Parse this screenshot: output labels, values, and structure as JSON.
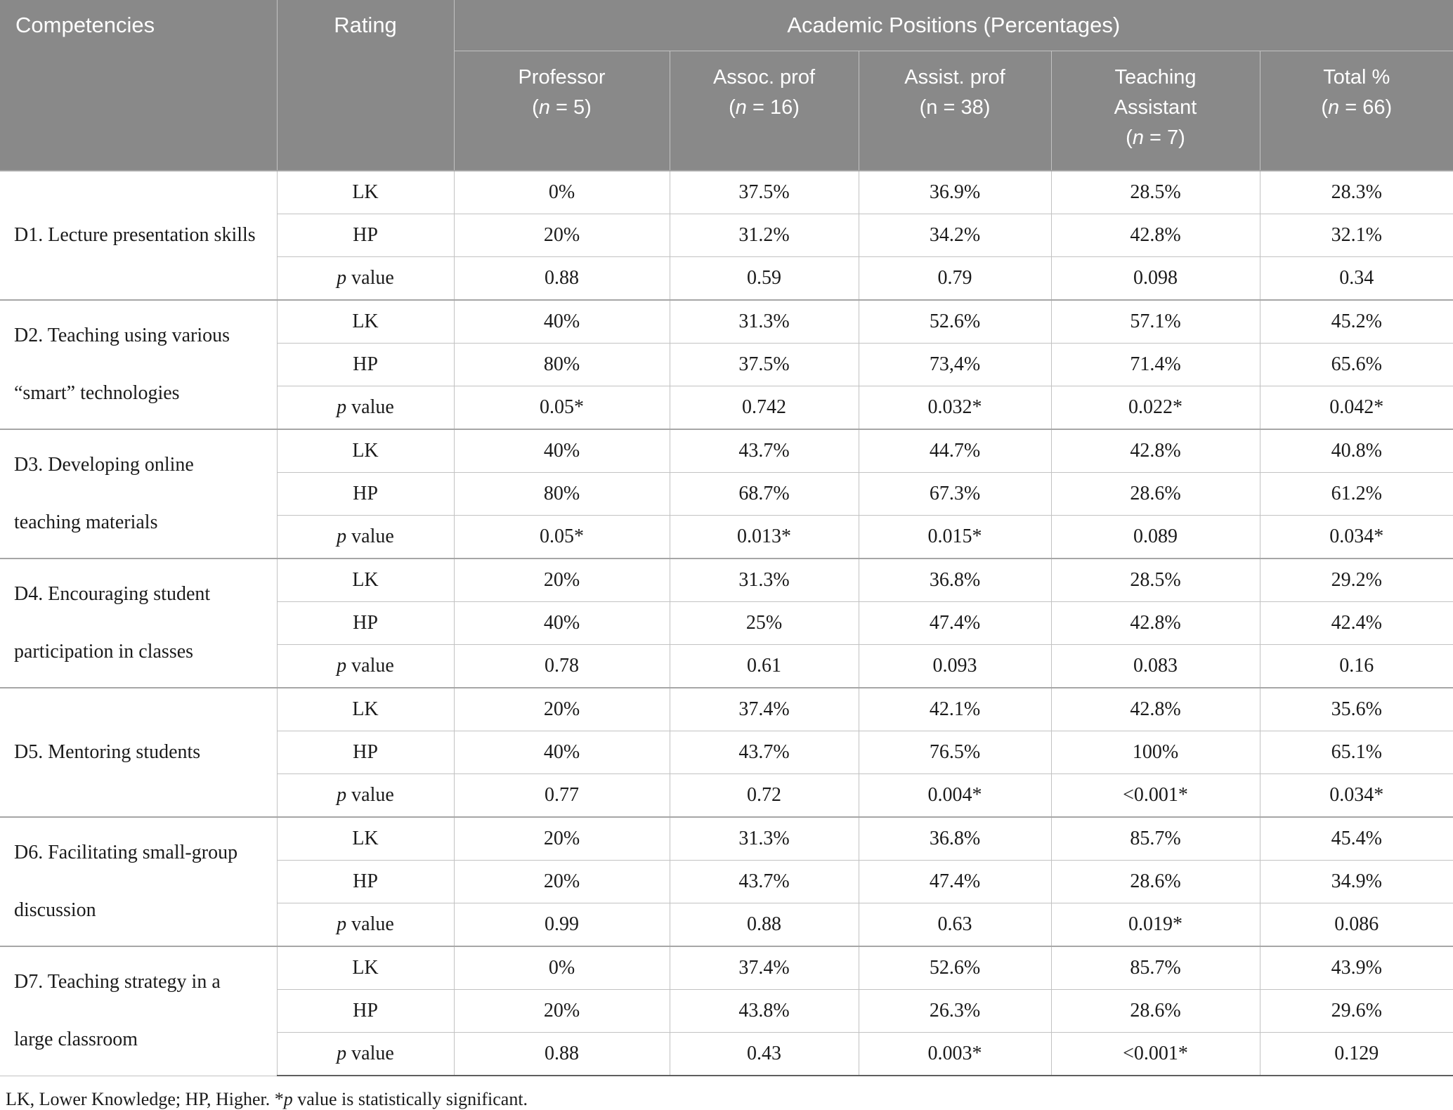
{
  "colors": {
    "header_bg": "#898989",
    "header_text": "#ffffff",
    "body_text": "#1b1b1b",
    "grid": "#c2c2c2",
    "group_line": "#a6a6a6",
    "bottom_line": "#5e5e5e"
  },
  "table": {
    "header": {
      "competencies": "Competencies",
      "rating": "Rating",
      "positions_title": "Academic Positions (Percentages)",
      "columns": [
        {
          "title_lines": [
            "Professor"
          ],
          "n": "5",
          "italic_n": true
        },
        {
          "title_lines": [
            "Assoc. prof"
          ],
          "n": "16",
          "italic_n": true
        },
        {
          "title_lines": [
            "Assist. prof"
          ],
          "n": "38",
          "italic_n": false
        },
        {
          "title_lines": [
            "Teaching",
            "Assistant"
          ],
          "n": "7",
          "italic_n": true
        },
        {
          "title_lines": [
            "Total %"
          ],
          "n": "66",
          "italic_n": true
        }
      ]
    },
    "groups": [
      {
        "competency_lines": [
          "D1. Lecture presentation skills"
        ],
        "rows": [
          {
            "rating": "LK",
            "values": [
              "0%",
              "37.5%",
              "36.9%",
              "28.5%",
              "28.3%"
            ]
          },
          {
            "rating": "HP",
            "values": [
              "20%",
              "31.2%",
              "34.2%",
              "42.8%",
              "32.1%"
            ]
          },
          {
            "rating": "p value",
            "values": [
              "0.88",
              "0.59",
              "0.79",
              "0.098",
              "0.34"
            ]
          }
        ]
      },
      {
        "competency_lines": [
          "D2. Teaching using various",
          "“smart” technologies"
        ],
        "rows": [
          {
            "rating": "LK",
            "values": [
              "40%",
              "31.3%",
              "52.6%",
              "57.1%",
              "45.2%"
            ]
          },
          {
            "rating": "HP",
            "values": [
              "80%",
              "37.5%",
              "73,4%",
              "71.4%",
              "65.6%"
            ]
          },
          {
            "rating": "p value",
            "values": [
              "0.05*",
              "0.742",
              "0.032*",
              "0.022*",
              "0.042*"
            ]
          }
        ]
      },
      {
        "competency_lines": [
          "D3. Developing online",
          "teaching materials"
        ],
        "rows": [
          {
            "rating": "LK",
            "values": [
              "40%",
              "43.7%",
              "44.7%",
              "42.8%",
              "40.8%"
            ]
          },
          {
            "rating": "HP",
            "values": [
              "80%",
              "68.7%",
              "67.3%",
              "28.6%",
              "61.2%"
            ]
          },
          {
            "rating": "p value",
            "values": [
              "0.05*",
              "0.013*",
              "0.015*",
              "0.089",
              "0.034*"
            ]
          }
        ]
      },
      {
        "competency_lines": [
          "D4. Encouraging student",
          "participation in classes"
        ],
        "rows": [
          {
            "rating": "LK",
            "values": [
              "20%",
              "31.3%",
              "36.8%",
              "28.5%",
              "29.2%"
            ]
          },
          {
            "rating": "HP",
            "values": [
              "40%",
              "25%",
              "47.4%",
              "42.8%",
              "42.4%"
            ]
          },
          {
            "rating": "p value",
            "values": [
              "0.78",
              "0.61",
              "0.093",
              "0.083",
              "0.16"
            ]
          }
        ]
      },
      {
        "competency_lines": [
          "D5. Mentoring students"
        ],
        "rows": [
          {
            "rating": "LK",
            "values": [
              "20%",
              "37.4%",
              "42.1%",
              "42.8%",
              "35.6%"
            ]
          },
          {
            "rating": "HP",
            "values": [
              "40%",
              "43.7%",
              "76.5%",
              "100%",
              "65.1%"
            ]
          },
          {
            "rating": "p value",
            "values": [
              "0.77",
              "0.72",
              "0.004*",
              "<0.001*",
              "0.034*"
            ]
          }
        ]
      },
      {
        "competency_lines": [
          "D6. Facilitating small-group",
          "discussion"
        ],
        "rows": [
          {
            "rating": "LK",
            "values": [
              "20%",
              "31.3%",
              "36.8%",
              "85.7%",
              "45.4%"
            ]
          },
          {
            "rating": "HP",
            "values": [
              "20%",
              "43.7%",
              "47.4%",
              "28.6%",
              "34.9%"
            ]
          },
          {
            "rating": "p value",
            "values": [
              "0.99",
              "0.88",
              "0.63",
              "0.019*",
              "0.086"
            ]
          }
        ]
      },
      {
        "competency_lines": [
          "D7. Teaching strategy in a",
          "large classroom"
        ],
        "rows": [
          {
            "rating": "LK",
            "values": [
              "0%",
              "37.4%",
              "52.6%",
              "85.7%",
              "43.9%"
            ]
          },
          {
            "rating": "HP",
            "values": [
              "20%",
              "43.8%",
              "26.3%",
              "28.6%",
              "29.6%"
            ]
          },
          {
            "rating": "p value",
            "values": [
              "0.88",
              "0.43",
              "0.003*",
              "<0.001*",
              "0.129"
            ]
          }
        ]
      }
    ],
    "footnote": {
      "pre": "LK, Lower Knowledge; HP, Higher. *",
      "italic": "p",
      "post": " value is statistically significant."
    }
  }
}
